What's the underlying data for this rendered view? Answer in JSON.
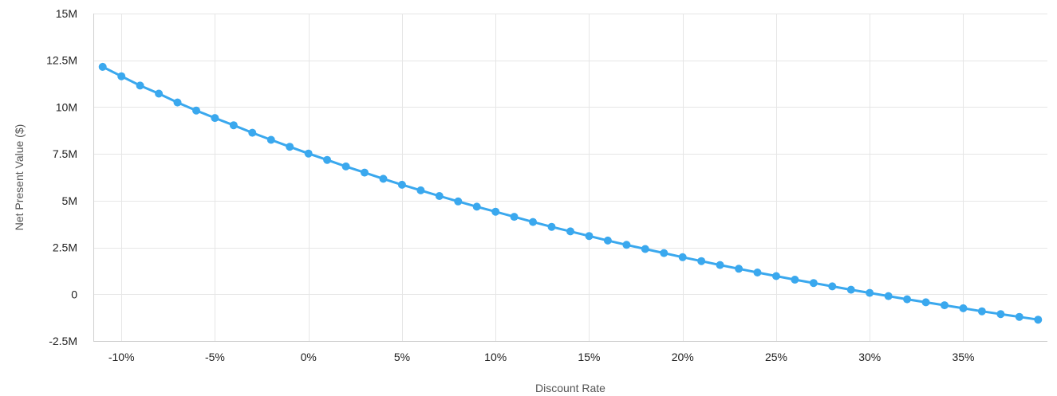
{
  "chart_data": {
    "type": "line",
    "title": "",
    "xlabel": "Discount Rate",
    "ylabel": "Net Present Value ($)",
    "x_ticks": [
      "-10%",
      "-5%",
      "0%",
      "5%",
      "10%",
      "15%",
      "20%",
      "25%",
      "30%",
      "35%"
    ],
    "x_tick_values": [
      -10,
      -5,
      0,
      5,
      10,
      15,
      20,
      25,
      30,
      35
    ],
    "y_ticks": [
      "15M",
      "12.5M",
      "10M",
      "7.5M",
      "5M",
      "2.5M",
      "0",
      "-2.5M"
    ],
    "y_tick_values": [
      15,
      12.5,
      10,
      7.5,
      5,
      2.5,
      0,
      -2.5
    ],
    "y_units": "millions of dollars",
    "xlim": [
      -11.5,
      39.5
    ],
    "ylim": [
      -2.5,
      15
    ],
    "grid": true,
    "legend": "none",
    "series_color": "#3aa8ee",
    "series": [
      {
        "x": [
          -11,
          -10,
          -9,
          -8,
          -7,
          -6,
          -5,
          -4,
          -3,
          -2,
          -1,
          0,
          1,
          2,
          3,
          4,
          5,
          6,
          7,
          8,
          9,
          10,
          11,
          12,
          13,
          14,
          15,
          16,
          17,
          18,
          19,
          20,
          21,
          22,
          23,
          24,
          25,
          26,
          27,
          28,
          29,
          30,
          31,
          32,
          33,
          34,
          35,
          36,
          37,
          38,
          39
        ],
        "values": [
          12.15,
          11.65,
          11.15,
          10.72,
          10.25,
          9.82,
          9.42,
          9.03,
          8.63,
          8.25,
          7.88,
          7.52,
          7.18,
          6.83,
          6.5,
          6.17,
          5.85,
          5.55,
          5.25,
          4.96,
          4.68,
          4.41,
          4.14,
          3.86,
          3.6,
          3.36,
          3.11,
          2.87,
          2.64,
          2.42,
          2.2,
          1.98,
          1.77,
          1.56,
          1.36,
          1.16,
          0.97,
          0.78,
          0.6,
          0.42,
          0.24,
          0.07,
          -0.1,
          -0.27,
          -0.43,
          -0.59,
          -0.75,
          -0.91,
          -1.06,
          -1.21,
          -1.36
        ]
      }
    ]
  }
}
